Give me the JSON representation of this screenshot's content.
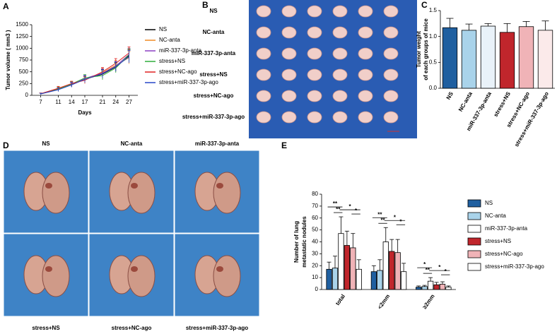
{
  "panel_letters": [
    "A",
    "B",
    "C",
    "D",
    "E"
  ],
  "panel_b": {
    "rows": [
      "NS",
      "NC-anta",
      "miR-337-3p-anta",
      "stress+NS",
      "stress+NC-ago",
      "stress+miR-337-3p-ago"
    ]
  },
  "panel_d": {
    "top": [
      "NS",
      "NC-anta",
      "miR-337-3p-anta"
    ],
    "bottom": [
      "stress+NS",
      "stress+NC-ago",
      "stress+miR-337-3p-ago"
    ]
  },
  "chart_data": [
    {
      "type": "line",
      "xlabel": "Days",
      "ylabel": "Tumor volume ( mm3 )",
      "x": [
        7,
        11,
        14,
        17,
        21,
        24,
        27
      ],
      "xlim": [
        5,
        29
      ],
      "xticks": [
        7,
        11,
        14,
        17,
        21,
        24,
        27
      ],
      "ylim": [
        0,
        1500
      ],
      "yticks": [
        0,
        250,
        500,
        750,
        1000,
        1250,
        1500
      ],
      "series": [
        {
          "name": "NS",
          "color": "#000000",
          "values": [
            30,
            130,
            230,
            340,
            450,
            600,
            840
          ],
          "errors": [
            15,
            40,
            50,
            70,
            90,
            100,
            130
          ]
        },
        {
          "name": "NC-anta",
          "color": "#f08a24",
          "values": [
            35,
            140,
            240,
            330,
            480,
            640,
            800
          ],
          "errors": [
            15,
            40,
            50,
            70,
            90,
            100,
            130
          ]
        },
        {
          "name": "miR-337-3p-anta",
          "color": "#8a3fc2",
          "values": [
            30,
            120,
            230,
            360,
            470,
            620,
            870
          ],
          "errors": [
            15,
            40,
            50,
            70,
            90,
            100,
            130
          ]
        },
        {
          "name": "stress+NS",
          "color": "#2fae3a",
          "values": [
            30,
            130,
            240,
            370,
            420,
            580,
            860
          ],
          "errors": [
            15,
            40,
            50,
            70,
            90,
            100,
            130
          ]
        },
        {
          "name": "stress+NC-ago",
          "color": "#e02020",
          "values": [
            35,
            150,
            250,
            320,
            500,
            680,
            900
          ],
          "errors": [
            15,
            40,
            50,
            70,
            90,
            100,
            130
          ]
        },
        {
          "name": "stress+miR-337-3p-ago",
          "color": "#2747c8",
          "values": [
            30,
            120,
            220,
            340,
            460,
            610,
            820
          ],
          "errors": [
            15,
            40,
            50,
            70,
            90,
            100,
            130
          ]
        }
      ]
    },
    {
      "type": "bar",
      "ylabel": [
        "Tumor weight",
        "of each groups of mice"
      ],
      "categories": [
        "NS",
        "NC-anta",
        "miR-337-3p-anta",
        "stress+NS",
        "stress+NC-ago",
        "stress+miR-337-3p-ago"
      ],
      "values": [
        1.17,
        1.12,
        1.2,
        1.08,
        1.19,
        1.12
      ],
      "errors": [
        0.18,
        0.12,
        0.05,
        0.17,
        0.1,
        0.18
      ],
      "colors": [
        "#1f5fa0",
        "#a9d3ea",
        "#e9f2f9",
        "#c0262c",
        "#f0b3b7",
        "#fbeaea"
      ],
      "ylim": [
        0,
        1.5
      ],
      "yticks": [
        {
          "value": 0,
          "label": "0.0"
        },
        0.5,
        {
          "value": 1,
          "label": "1.0"
        },
        1.5
      ]
    },
    {
      "type": "grouped-bar",
      "ylabel": [
        "Number of lung",
        "metastatic nodules"
      ],
      "categories": [
        "total",
        "<2mm",
        "≥2mm"
      ],
      "ylim": [
        0,
        80
      ],
      "yticks": [
        0,
        10,
        20,
        30,
        40,
        50,
        60,
        70,
        80
      ],
      "series": [
        {
          "name": "NS",
          "color": "#1f5fa0",
          "values": [
            17,
            15,
            2
          ],
          "errors": [
            6,
            5,
            1
          ]
        },
        {
          "name": "NC-anta",
          "color": "#a9d3ea",
          "values": [
            18,
            16,
            2.5
          ],
          "errors": [
            10,
            9,
            1
          ]
        },
        {
          "name": "miR-337-3p-anta",
          "color": "#ffffff",
          "values": [
            47,
            40,
            7
          ],
          "errors": [
            14,
            12,
            3
          ]
        },
        {
          "name": "stress+NS",
          "color": "#c0262c",
          "values": [
            37,
            32,
            4
          ],
          "errors": [
            12,
            10,
            2
          ]
        },
        {
          "name": "stress+NC-ago",
          "color": "#f0b3b7",
          "values": [
            35,
            31,
            4.5
          ],
          "errors": [
            12,
            11,
            2
          ]
        },
        {
          "name": "stress+miR-337-3p-ago",
          "color": "#ffffff",
          "values": [
            17,
            15,
            2
          ],
          "errors": [
            8,
            7,
            1
          ]
        }
      ],
      "annotations": [
        [
          "**",
          "**",
          "*",
          "*"
        ],
        [
          "**",
          "**",
          "*",
          "*"
        ],
        [
          "*",
          "**",
          "*",
          "*"
        ]
      ]
    }
  ]
}
